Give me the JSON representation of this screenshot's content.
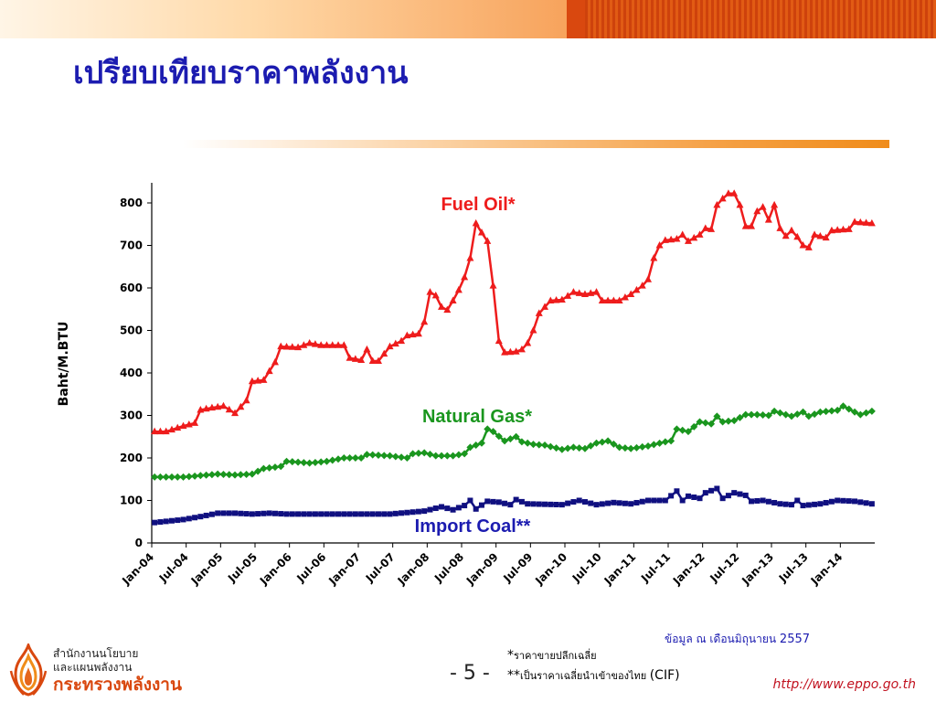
{
  "slide": {
    "title": "เปรียบเทียบราคาพลังงาน",
    "page_number": "- 5 -",
    "source_note": "ข้อมูล ณ เดือนมิถุนายน",
    "source_year": "2557",
    "footnote1_mark": "*",
    "footnote1_text": "ราคาขายปลีกเฉลี่ย",
    "footnote2_mark": "**",
    "footnote2_text": "เป็นราคาเฉลี่ยนำเข้าของไทย",
    "footnote2_suffix": "(CIF)",
    "org_line1": "สำนักงานนโยบาย",
    "org_line2": "และแผนพลังงาน",
    "org_line3": "กระทรวงพลังงาน",
    "url": "http://www.eppo.go.th"
  },
  "colors": {
    "title": "#1c1cb0",
    "fuel_oil": "#ee1c1c",
    "natural_gas": "#1a961e",
    "import_coal": "#101080",
    "brand_orange": "#d9480f"
  },
  "chart_data": {
    "type": "line",
    "title": "",
    "xlabel": "",
    "ylabel": "Baht/M.BTU",
    "ylim": [
      0,
      800
    ],
    "yticks": [
      0,
      100,
      200,
      300,
      400,
      500,
      600,
      700,
      800
    ],
    "x_start": "Jan-04",
    "x_end": "Jun-14",
    "xtick_labels": [
      "Jan-04",
      "Jul-04",
      "Jan-05",
      "Jul-05",
      "Jan-06",
      "Jul-06",
      "Jan-07",
      "Jul-07",
      "Jan-08",
      "Jul-08",
      "Jan-09",
      "Jul-09",
      "Jan-10",
      "Jul-10",
      "Jan-11",
      "Jul-11",
      "Jan-12",
      "Jul-12",
      "Jan-13",
      "Jul-13",
      "Jan-14"
    ],
    "grid": false,
    "series": [
      {
        "name": "Fuel Oil*",
        "color": "#ee1c1c",
        "marker": "triangle",
        "keypoints": [
          [
            "Jan-04",
            262
          ],
          [
            "Mar-04",
            262
          ],
          [
            "Jun-04",
            275
          ],
          [
            "Aug-04",
            282
          ],
          [
            "Sep-04",
            313
          ],
          [
            "Nov-04",
            318
          ],
          [
            "Jan-05",
            322
          ],
          [
            "Mar-05",
            305
          ],
          [
            "May-05",
            335
          ],
          [
            "Jun-05",
            380
          ],
          [
            "Aug-05",
            383
          ],
          [
            "Oct-05",
            425
          ],
          [
            "Nov-05",
            462
          ],
          [
            "Feb-06",
            460
          ],
          [
            "Apr-06",
            470
          ],
          [
            "Jun-06",
            465
          ],
          [
            "Oct-06",
            465
          ],
          [
            "Nov-06",
            435
          ],
          [
            "Jan-07",
            430
          ],
          [
            "Feb-07",
            455
          ],
          [
            "Mar-07",
            428
          ],
          [
            "Apr-07",
            428
          ],
          [
            "Jun-07",
            462
          ],
          [
            "Aug-07",
            475
          ],
          [
            "Sep-07",
            488
          ],
          [
            "Nov-07",
            492
          ],
          [
            "Dec-07",
            520
          ],
          [
            "Jan-08",
            590
          ],
          [
            "Feb-08",
            582
          ],
          [
            "Mar-08",
            555
          ],
          [
            "Apr-08",
            548
          ],
          [
            "May-08",
            570
          ],
          [
            "Jun-08",
            595
          ],
          [
            "Jul-08",
            625
          ],
          [
            "Aug-08",
            670
          ],
          [
            "Sep-08",
            752
          ],
          [
            "Oct-08",
            730
          ],
          [
            "Nov-08",
            710
          ],
          [
            "Dec-08",
            605
          ],
          [
            "Jan-09",
            475
          ],
          [
            "Feb-09",
            448
          ],
          [
            "Apr-09",
            450
          ],
          [
            "May-09",
            455
          ],
          [
            "Jun-09",
            470
          ],
          [
            "Jul-09",
            500
          ],
          [
            "Aug-09",
            540
          ],
          [
            "Oct-09",
            570
          ],
          [
            "Dec-09",
            572
          ],
          [
            "Feb-10",
            590
          ],
          [
            "Apr-10",
            585
          ],
          [
            "Jun-10",
            590
          ],
          [
            "Jul-10",
            570
          ],
          [
            "Oct-10",
            570
          ],
          [
            "Dec-10",
            585
          ],
          [
            "Feb-11",
            605
          ],
          [
            "Mar-11",
            620
          ],
          [
            "Apr-11",
            670
          ],
          [
            "May-11",
            700
          ],
          [
            "Jun-11",
            712
          ],
          [
            "Aug-11",
            715
          ],
          [
            "Sep-11",
            725
          ],
          [
            "Oct-11",
            710
          ],
          [
            "Dec-11",
            725
          ],
          [
            "Jan-12",
            740
          ],
          [
            "Feb-12",
            738
          ],
          [
            "Mar-12",
            795
          ],
          [
            "Apr-12",
            810
          ],
          [
            "May-12",
            822
          ],
          [
            "Jun-12",
            822
          ],
          [
            "Jul-12",
            795
          ],
          [
            "Aug-12",
            745
          ],
          [
            "Sep-12",
            745
          ],
          [
            "Oct-12",
            780
          ],
          [
            "Nov-12",
            790
          ],
          [
            "Dec-12",
            760
          ],
          [
            "Jan-13",
            795
          ],
          [
            "Feb-13",
            740
          ],
          [
            "Mar-13",
            722
          ],
          [
            "Apr-13",
            735
          ],
          [
            "May-13",
            720
          ],
          [
            "Jun-13",
            700
          ],
          [
            "Jul-13",
            695
          ],
          [
            "Aug-13",
            725
          ],
          [
            "Oct-13",
            718
          ],
          [
            "Nov-13",
            735
          ],
          [
            "Feb-14",
            738
          ],
          [
            "Mar-14",
            755
          ],
          [
            "Jun-14",
            752
          ]
        ]
      },
      {
        "name": "Natural Gas*",
        "color": "#1a961e",
        "marker": "diamond",
        "keypoints": [
          [
            "Jan-04",
            155
          ],
          [
            "Jun-04",
            155
          ],
          [
            "Dec-04",
            162
          ],
          [
            "Mar-05",
            160
          ],
          [
            "Jun-05",
            162
          ],
          [
            "Aug-05",
            175
          ],
          [
            "Nov-05",
            180
          ],
          [
            "Dec-05",
            192
          ],
          [
            "Apr-06",
            188
          ],
          [
            "Jul-06",
            192
          ],
          [
            "Oct-06",
            200
          ],
          [
            "Jan-07",
            200
          ],
          [
            "Feb-07",
            208
          ],
          [
            "Jun-07",
            205
          ],
          [
            "Sep-07",
            200
          ],
          [
            "Oct-07",
            210
          ],
          [
            "Dec-07",
            212
          ],
          [
            "Feb-08",
            205
          ],
          [
            "May-08",
            205
          ],
          [
            "Jul-08",
            210
          ],
          [
            "Aug-08",
            225
          ],
          [
            "Oct-08",
            235
          ],
          [
            "Nov-08",
            268
          ],
          [
            "Dec-08",
            262
          ],
          [
            "Feb-09",
            240
          ],
          [
            "Apr-09",
            250
          ],
          [
            "May-09",
            238
          ],
          [
            "Jul-09",
            232
          ],
          [
            "Sep-09",
            230
          ],
          [
            "Dec-09",
            220
          ],
          [
            "Feb-10",
            225
          ],
          [
            "Apr-10",
            222
          ],
          [
            "Jun-10",
            235
          ],
          [
            "Aug-10",
            240
          ],
          [
            "Oct-10",
            225
          ],
          [
            "Dec-10",
            222
          ],
          [
            "Mar-11",
            228
          ],
          [
            "Jun-11",
            238
          ],
          [
            "Jul-11",
            240
          ],
          [
            "Aug-11",
            268
          ],
          [
            "Oct-11",
            262
          ],
          [
            "Dec-11",
            285
          ],
          [
            "Feb-12",
            280
          ],
          [
            "Mar-12",
            298
          ],
          [
            "Apr-12",
            285
          ],
          [
            "Jun-12",
            288
          ],
          [
            "Aug-12",
            302
          ],
          [
            "Oct-12",
            302
          ],
          [
            "Dec-12",
            300
          ],
          [
            "Jan-13",
            310
          ],
          [
            "Apr-13",
            298
          ],
          [
            "Jun-13",
            308
          ],
          [
            "Jul-13",
            298
          ],
          [
            "Sep-13",
            308
          ],
          [
            "Dec-13",
            312
          ],
          [
            "Jan-14",
            322
          ],
          [
            "Mar-14",
            308
          ],
          [
            "Apr-14",
            302
          ],
          [
            "Jun-14",
            310
          ]
        ]
      },
      {
        "name": "Import Coal**",
        "color": "#101080",
        "marker": "square",
        "keypoints": [
          [
            "Jan-04",
            48
          ],
          [
            "Jun-04",
            55
          ],
          [
            "Sep-04",
            62
          ],
          [
            "Dec-04",
            70
          ],
          [
            "Mar-05",
            70
          ],
          [
            "Jun-05",
            68
          ],
          [
            "Sep-05",
            70
          ],
          [
            "Dec-05",
            68
          ],
          [
            "Jun-06",
            68
          ],
          [
            "Dec-06",
            68
          ],
          [
            "Jun-07",
            68
          ],
          [
            "Dec-07",
            75
          ],
          [
            "Mar-08",
            85
          ],
          [
            "May-08",
            78
          ],
          [
            "Jul-08",
            88
          ],
          [
            "Aug-08",
            100
          ],
          [
            "Sep-08",
            80
          ],
          [
            "Nov-08",
            98
          ],
          [
            "Jan-09",
            96
          ],
          [
            "Mar-09",
            90
          ],
          [
            "Apr-09",
            102
          ],
          [
            "Jun-09",
            92
          ],
          [
            "Dec-09",
            90
          ],
          [
            "Mar-10",
            100
          ],
          [
            "Jun-10",
            90
          ],
          [
            "Sep-10",
            95
          ],
          [
            "Dec-10",
            92
          ],
          [
            "Mar-11",
            100
          ],
          [
            "Jun-11",
            100
          ],
          [
            "Aug-11",
            122
          ],
          [
            "Sep-11",
            100
          ],
          [
            "Oct-11",
            110
          ],
          [
            "Dec-11",
            105
          ],
          [
            "Jan-12",
            118
          ],
          [
            "Mar-12",
            128
          ],
          [
            "Apr-12",
            105
          ],
          [
            "Jun-12",
            118
          ],
          [
            "Aug-12",
            112
          ],
          [
            "Sep-12",
            98
          ],
          [
            "Nov-12",
            100
          ],
          [
            "Feb-13",
            92
          ],
          [
            "Apr-13",
            90
          ],
          [
            "May-13",
            100
          ],
          [
            "Jun-13",
            88
          ],
          [
            "Sep-13",
            92
          ],
          [
            "Dec-13",
            100
          ],
          [
            "Mar-14",
            98
          ],
          [
            "Jun-14",
            92
          ]
        ]
      }
    ],
    "annotations": [
      {
        "text": "Fuel Oil*",
        "color": "#ee1c1c"
      },
      {
        "text": "Natural Gas*",
        "color": "#1a961e"
      },
      {
        "text": "Import Coal**",
        "color": "#1c1cb0"
      }
    ]
  }
}
